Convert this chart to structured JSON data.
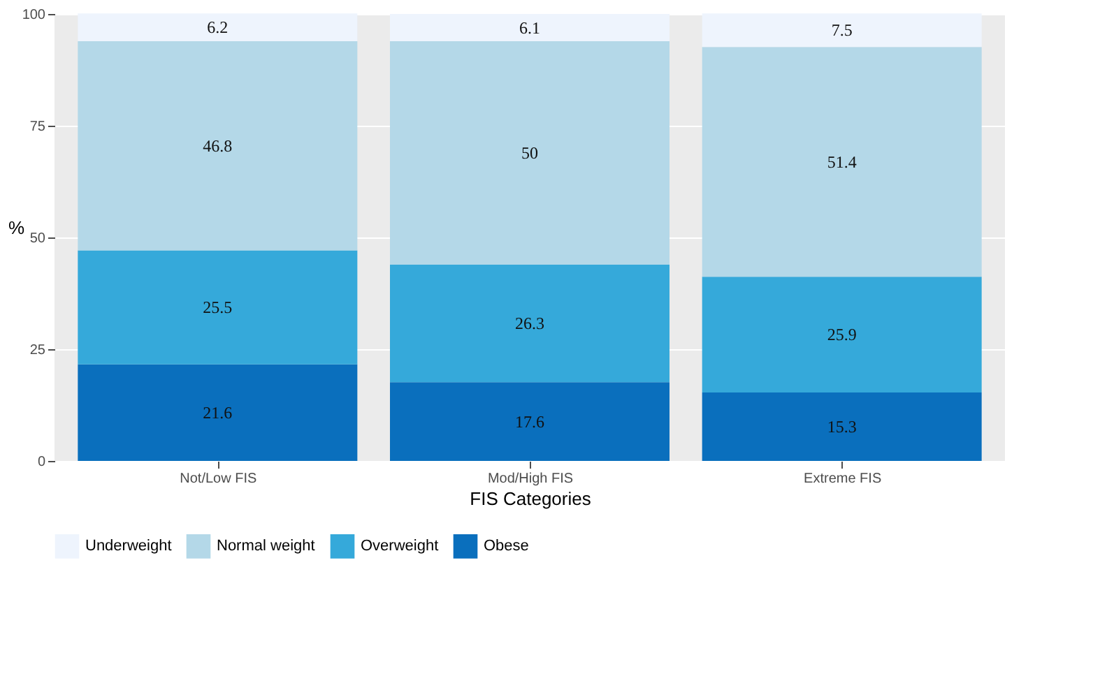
{
  "chart_data": {
    "type": "bar",
    "stacked": true,
    "xlabel": "FIS Categories",
    "ylabel": "%",
    "categories": [
      "Not/Low FIS",
      "Mod/High FIS",
      "Extreme FIS"
    ],
    "series": [
      {
        "name": "Obese",
        "color": "#0a6fbd",
        "values": [
          21.6,
          17.6,
          15.3
        ]
      },
      {
        "name": "Overweight",
        "color": "#35a9da",
        "values": [
          25.5,
          26.3,
          25.9
        ]
      },
      {
        "name": "Normal weight",
        "color": "#b4d8e8",
        "values": [
          46.8,
          50,
          51.4
        ]
      },
      {
        "name": "Underweight",
        "color": "#eef4fd",
        "values": [
          6.2,
          6.1,
          7.5
        ]
      }
    ],
    "ylim": [
      0,
      100
    ],
    "yticks": [
      0,
      25,
      50,
      75,
      100
    ],
    "grid": true,
    "legend": "bottom",
    "data_labels": true
  }
}
